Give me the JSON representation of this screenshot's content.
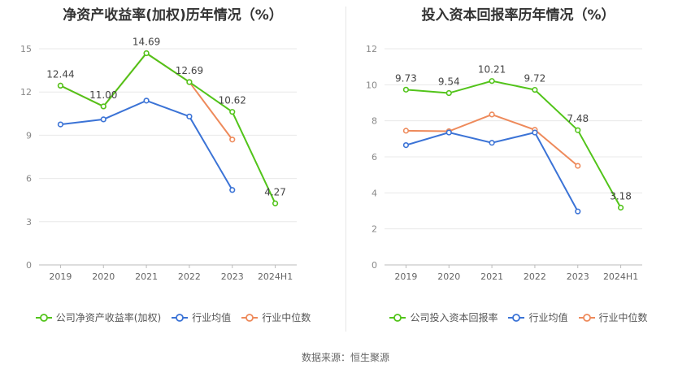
{
  "chart_data": [
    {
      "type": "line",
      "title": "净资产收益率(加权)历年情况（%）",
      "categories": [
        "2019",
        "2020",
        "2021",
        "2022",
        "2023",
        "2024H1"
      ],
      "ylim": [
        0,
        15
      ],
      "yticks": [
        0,
        3,
        6,
        9,
        12,
        15
      ],
      "grid": true,
      "legend_position": "bottom",
      "series": [
        {
          "name": "公司净资产收益率(加权)",
          "color": "#52c41a",
          "values": [
            12.44,
            11.0,
            14.69,
            12.69,
            10.62,
            4.27
          ],
          "labels": [
            "12.44",
            "11.00",
            "14.69",
            "12.69",
            "10.62",
            "4.27"
          ]
        },
        {
          "name": "行业均值",
          "color": "#3b73d6",
          "values": [
            9.75,
            10.1,
            11.4,
            10.3,
            5.2,
            null
          ]
        },
        {
          "name": "行业中位数",
          "color": "#ee8a5b",
          "values": [
            12.44,
            11.0,
            14.69,
            12.69,
            8.7,
            null
          ]
        }
      ]
    },
    {
      "type": "line",
      "title": "投入资本回报率历年情况（%）",
      "categories": [
        "2019",
        "2020",
        "2021",
        "2022",
        "2023",
        "2024H1"
      ],
      "ylim": [
        0,
        12
      ],
      "yticks": [
        0,
        2,
        4,
        6,
        8,
        10,
        12
      ],
      "grid": true,
      "legend_position": "bottom",
      "series": [
        {
          "name": "公司投入资本回报率",
          "color": "#52c41a",
          "values": [
            9.73,
            9.54,
            10.21,
            9.72,
            7.48,
            3.18
          ],
          "labels": [
            "9.73",
            "9.54",
            "10.21",
            "9.72",
            "7.48",
            "3.18"
          ]
        },
        {
          "name": "行业均值",
          "color": "#3b73d6",
          "values": [
            6.65,
            7.35,
            6.78,
            7.35,
            2.97,
            null
          ]
        },
        {
          "name": "行业中位数",
          "color": "#ee8a5b",
          "values": [
            7.45,
            7.42,
            8.35,
            7.5,
            5.5,
            null
          ]
        }
      ]
    }
  ],
  "source_text": "数据来源：恒生聚源"
}
